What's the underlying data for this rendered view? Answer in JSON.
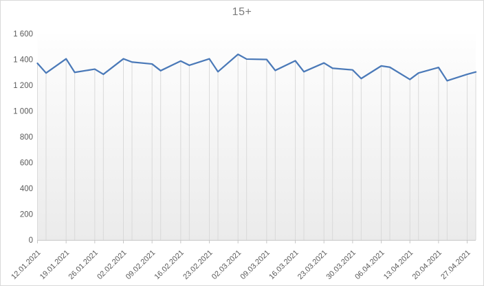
{
  "chart_data": {
    "type": "line",
    "title": "15+",
    "categories": [
      "12.01.2021",
      "19.01.2021",
      "26.01.2021",
      "02.02.2021",
      "09.02.2021",
      "16.02.2021",
      "23.02.2021",
      "02.03.2021",
      "09.03.2021",
      "16.03.2021",
      "23.03.2021",
      "30.03.2021",
      "06.04.2021",
      "13.04.2021",
      "20.04.2021",
      "27.04.2021"
    ],
    "points_per_category": 2,
    "values": [
      1370,
      1295,
      1405,
      1300,
      1325,
      1285,
      1405,
      1380,
      1365,
      1313,
      1388,
      1355,
      1405,
      1305,
      1440,
      1403,
      1400,
      1315,
      1390,
      1305,
      1373,
      1332,
      1319,
      1252,
      1350,
      1340,
      1245,
      1295,
      1338,
      1235,
      1285,
      1303
    ],
    "xlabel": "",
    "ylabel": "",
    "ylim": [
      0,
      1600
    ],
    "y_tick_step": 200,
    "y_tick_labels": [
      "0",
      "200",
      "400",
      "600",
      "800",
      "1 000",
      "1 200",
      "1 400",
      "1 600"
    ],
    "legend": "none",
    "grid": "vertical-drop-lines-only",
    "x_label_rotation_deg": 45
  },
  "colors": {
    "line": "#4A79B8",
    "drop_line": "#D9D9D9",
    "axis_line": "#C6C6C6",
    "tick_label": "#595959",
    "title": "#7A7A7A",
    "plot_gradient_top": "#FEFEFE",
    "plot_gradient_bottom": "#EBEBEB",
    "frame_border": "#D9D9D9"
  }
}
